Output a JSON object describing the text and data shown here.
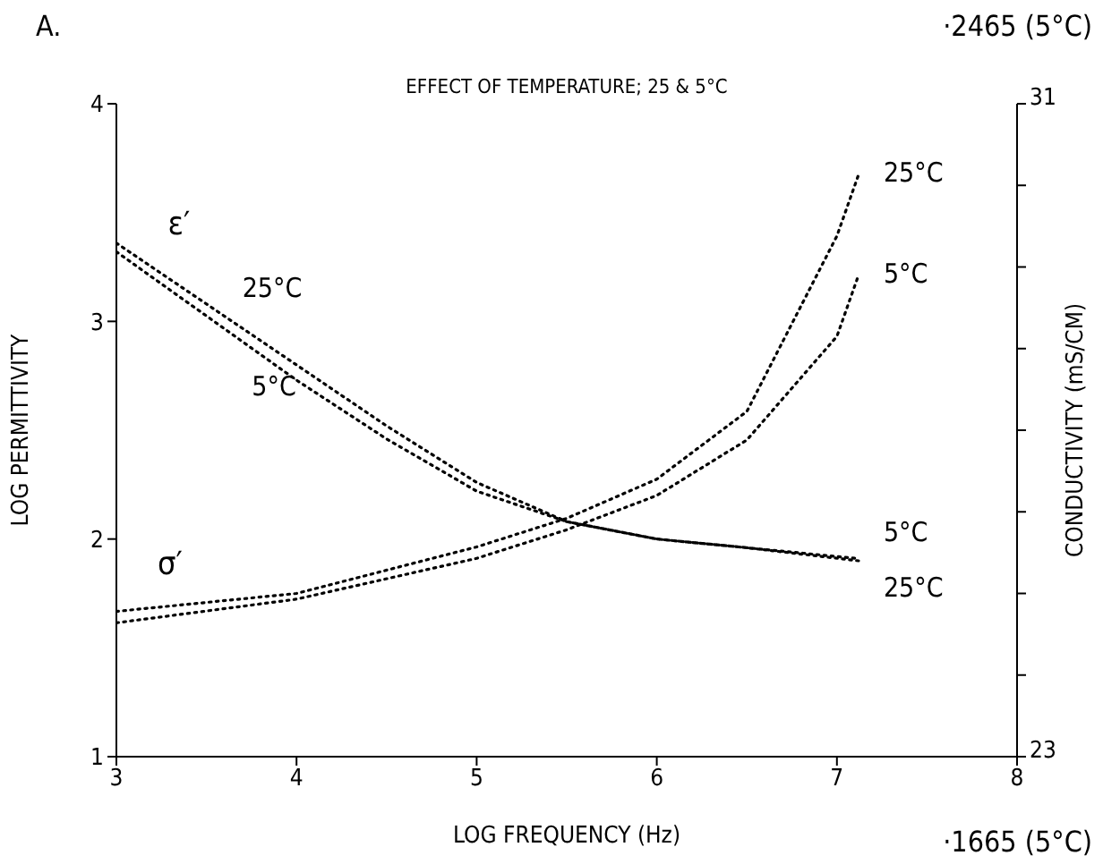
{
  "chart_data": {
    "type": "line",
    "title": "EFFECT OF TEMPERATURE; 25 & 5°C",
    "xlabel": "LOG FREQUENCY (Hz)",
    "ylabel": "LOG PERMITTIVITY",
    "y2label": "CONDUCTIVITY (mS/CM)",
    "xlim": [
      3,
      8
    ],
    "xticks": [
      3,
      4,
      5,
      6,
      7,
      8
    ],
    "ylim": [
      1,
      4
    ],
    "yticks": [
      1,
      2,
      3,
      4
    ],
    "y2lim": [
      23,
      31
    ],
    "y2ticks": [
      23,
      {
        "value": 24,
        "label": null
      },
      {
        "value": 25,
        "label": null
      },
      {
        "value": 26,
        "label": null
      },
      {
        "value": 27,
        "label": null
      },
      {
        "value": 28,
        "label": null
      },
      {
        "value": 29,
        "label": null
      },
      {
        "value": 30,
        "label": null
      },
      31
    ],
    "line_style": "dotted",
    "marker": "none",
    "series": [
      {
        "name": "25°C",
        "color": "#000000",
        "x": [
          3,
          4,
          4.5,
          5,
          5.5,
          6,
          6.5,
          7.12
        ],
        "values": [
          3.36,
          2.8,
          2.52,
          2.26,
          2.08,
          2.0,
          1.96,
          1.9
        ]
      },
      {
        "name": "5°C",
        "color": "#000000",
        "x": [
          3,
          4,
          4.5,
          5,
          5.5,
          6,
          6.5,
          7.12
        ],
        "values": [
          3.32,
          2.73,
          2.46,
          2.22,
          2.08,
          2.0,
          1.96,
          1.91
        ]
      },
      {
        "name": "25°C",
        "color": "#000000",
        "axis": "y2",
        "x": [
          3,
          4,
          5,
          5.5,
          6,
          6.5,
          7,
          7.12
        ],
        "values": [
          24.78,
          25.0,
          25.57,
          25.92,
          26.4,
          27.23,
          29.38,
          30.13
        ]
      },
      {
        "name": "5°C",
        "color": "#000000",
        "axis": "y2",
        "x": [
          3,
          4,
          5,
          5.5,
          6,
          6.5,
          7,
          7.12
        ],
        "values": [
          24.64,
          24.93,
          25.43,
          25.78,
          26.2,
          26.88,
          28.15,
          28.9
        ]
      }
    ],
    "annotations": [
      "A.",
      "·2465 (5°C)",
      "·1665 (5°C)",
      "ε′",
      "25°C",
      "5°C",
      "σ′"
    ]
  }
}
